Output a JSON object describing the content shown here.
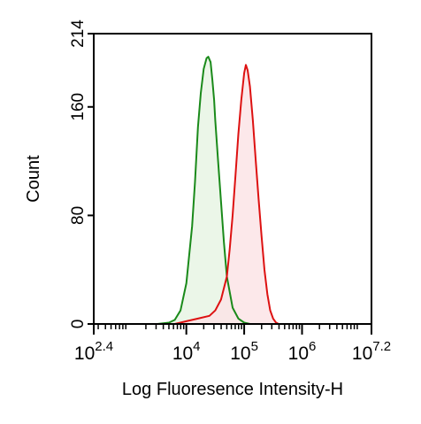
{
  "chart_data": {
    "type": "area",
    "title": "",
    "xlabel": "Log Fluoresence Intensity-H",
    "ylabel": "Count",
    "x_scale": "log10",
    "xlim_log10": [
      2.4,
      7.2
    ],
    "ylim": [
      0,
      214
    ],
    "x_ticks": [
      {
        "base": "10",
        "exp": "2.4",
        "log": 2.4
      },
      {
        "base": "10",
        "exp": "4",
        "log": 4
      },
      {
        "base": "10",
        "exp": "5",
        "log": 5
      },
      {
        "base": "10",
        "exp": "6",
        "log": 6
      },
      {
        "base": "10",
        "exp": "7.2",
        "log": 7.2
      }
    ],
    "y_ticks": [
      {
        "label": "0",
        "value": 0
      },
      {
        "label": "80",
        "value": 80
      },
      {
        "label": "160",
        "value": 160
      },
      {
        "label": "214",
        "value": 214
      }
    ],
    "grid": false,
    "legend": "none",
    "series": [
      {
        "color": "#1a8a1a",
        "fill": "#e8f4e4",
        "x_log10": [
          2.4,
          3.5,
          3.7,
          3.8,
          3.9,
          4.0,
          4.1,
          4.15,
          4.2,
          4.25,
          4.3,
          4.35,
          4.38,
          4.42,
          4.45,
          4.48,
          4.5,
          4.55,
          4.6,
          4.65,
          4.7,
          4.8,
          4.9,
          5.0,
          5.1,
          7.2
        ],
        "counts": [
          0,
          0,
          1,
          3,
          10,
          30,
          72,
          105,
          145,
          170,
          188,
          196,
          197,
          193,
          180,
          165,
          150,
          120,
          90,
          60,
          35,
          12,
          4,
          1,
          0,
          0
        ]
      },
      {
        "color": "#dd1111",
        "fill": "#fce4e6",
        "x_log10": [
          2.4,
          3.8,
          4.0,
          4.2,
          4.4,
          4.5,
          4.6,
          4.7,
          4.75,
          4.8,
          4.85,
          4.9,
          4.95,
          5.0,
          5.03,
          5.06,
          5.1,
          5.15,
          5.2,
          5.25,
          5.3,
          5.35,
          5.4,
          5.45,
          5.5,
          5.55,
          5.6,
          7.2
        ],
        "counts": [
          0,
          0,
          2,
          4,
          6,
          10,
          18,
          35,
          55,
          80,
          110,
          140,
          165,
          185,
          191,
          187,
          175,
          150,
          120,
          92,
          65,
          40,
          22,
          10,
          4,
          1,
          0,
          0
        ]
      }
    ]
  }
}
